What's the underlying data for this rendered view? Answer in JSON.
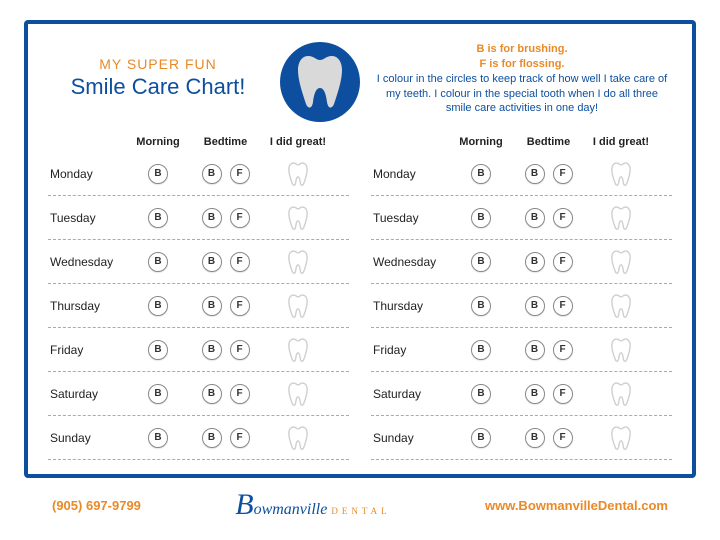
{
  "header": {
    "super": "MY SUPER FUN",
    "title": "Smile Care Chart!"
  },
  "instructions": {
    "line1": "B is for brushing.",
    "line2": "F is for flossing.",
    "body": "I colour in the circles to keep track of how well I take care of my teeth.  I colour in the special tooth when I do all three smile care activities in one day!"
  },
  "columns": {
    "morning": "Morning",
    "bedtime": "Bedtime",
    "great": "I did great!"
  },
  "days": [
    "Monday",
    "Tuesday",
    "Wednesday",
    "Thursday",
    "Friday",
    "Saturday",
    "Sunday"
  ],
  "markers": {
    "b": "B",
    "f": "F"
  },
  "footer": {
    "phone": "(905) 697-9799",
    "website": "www.BowmanvilleDental.com",
    "logo_main": "Bowmanville",
    "logo_sub": "DENTAL"
  },
  "colors": {
    "border": "#0d4f9e",
    "accent": "#e88a28",
    "tooth_fill": "#d9d9d9",
    "mini_tooth_stroke": "#cfcfcf"
  }
}
